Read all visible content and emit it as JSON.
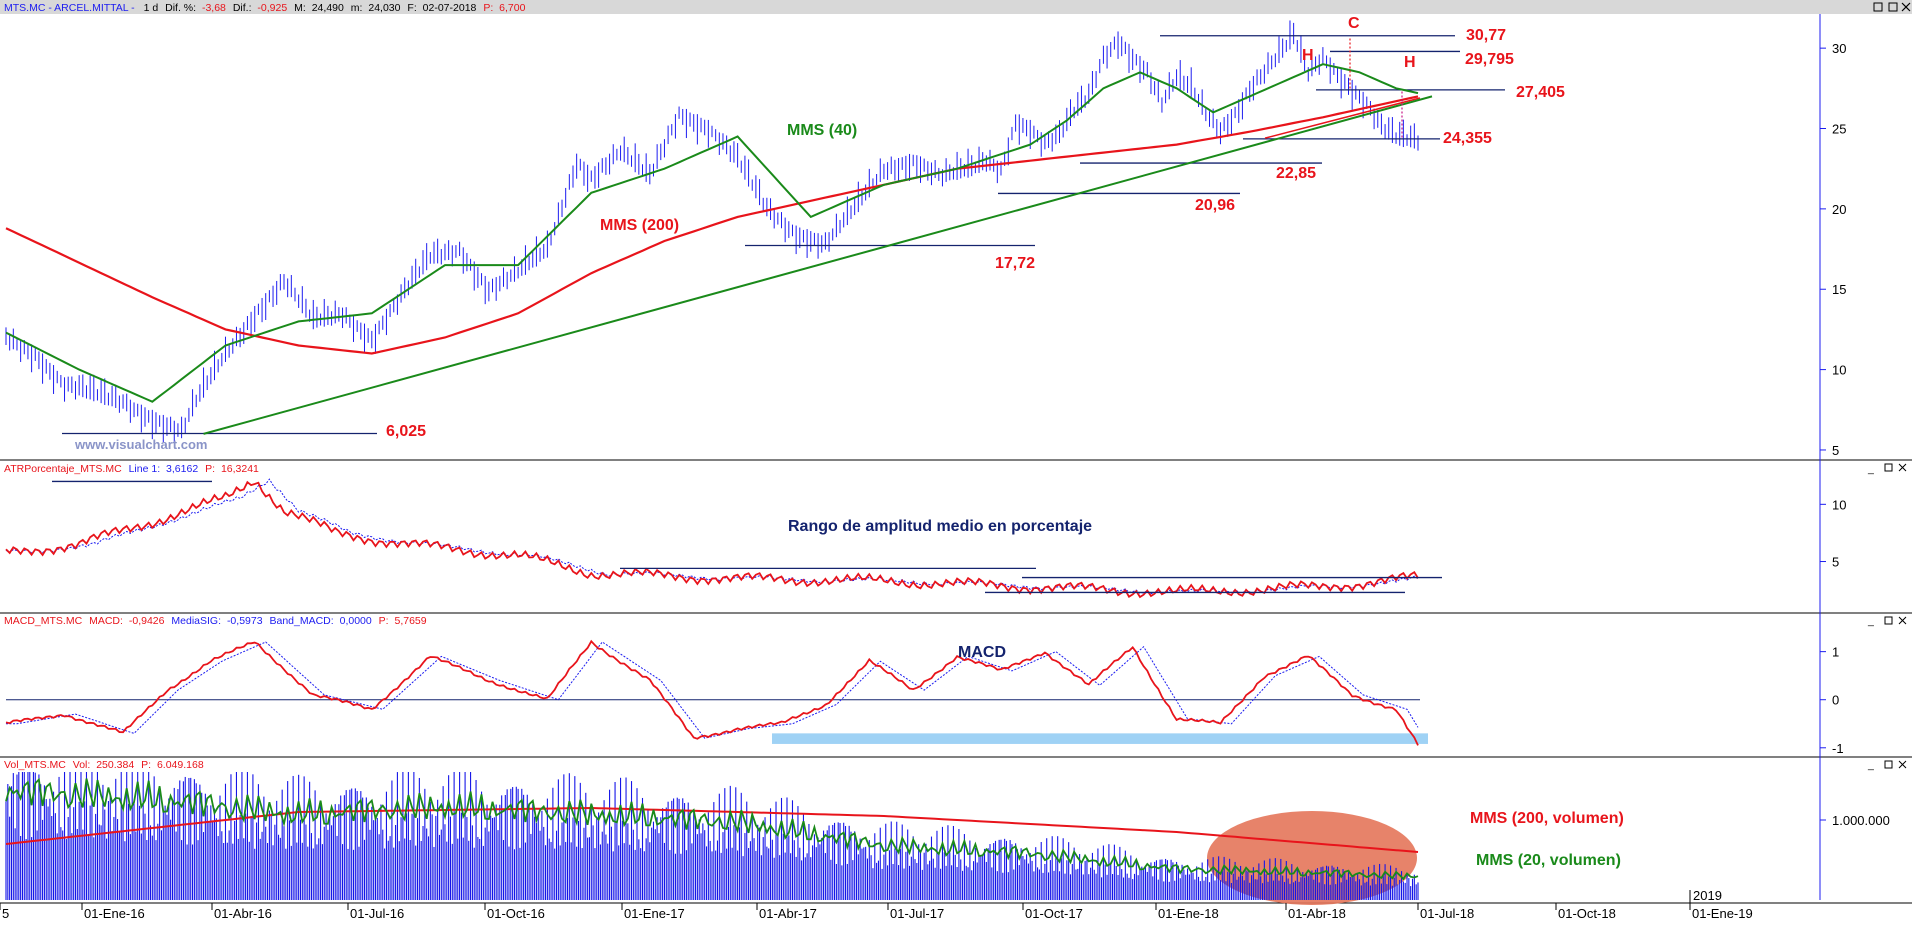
{
  "header": {
    "symbol": "MTS.MC - ARCEL.MITTAL -",
    "period": "1 d",
    "dif_pct_label": "Dif. %:",
    "dif_pct_value": "-3,68",
    "dif_label": "Dif.:",
    "dif_value": "-0,925",
    "max_label": "M:",
    "max_value": "24,490",
    "min_label": "m:",
    "min_value": "24,030",
    "date_label": "F:",
    "date_value": "02-07-2018",
    "price_label": "P:",
    "price_value": "6,700"
  },
  "panels": {
    "atr": {
      "name": "ATRPorcentaje_MTS.MC",
      "line_label": "Line 1:",
      "line_value": "3,6162",
      "p_label": "P:",
      "p_value": "16,3241"
    },
    "macd": {
      "name": "MACD_MTS.MC",
      "macd_label": "MACD:",
      "macd_value": "-0,9426",
      "sig_label": "MediaSIG:",
      "sig_value": "-0,5973",
      "band_label": "Band_MACD:",
      "band_value": "0,0000",
      "p_label": "P:",
      "p_value": "5,7659"
    },
    "vol": {
      "name": "Vol_MTS.MC",
      "vol_label": "Vol:",
      "vol_value": "250.384",
      "p_label": "P:",
      "p_value": "6.049.168"
    }
  },
  "watermark": "www.visualchart.com",
  "annotations": {
    "mms40": "MMS (40)",
    "mms200": "MMS (200)",
    "atr_title": "Rango de amplitud medio en porcentaje",
    "macd_title": "MACD",
    "vol200": "MMS (200, volumen)",
    "vol20": "MMS (20, volumen)",
    "c_mark": "C",
    "h_left": "H",
    "h_right": "H",
    "lvl_3077": "30,77",
    "lvl_29795": "29,795",
    "lvl_27405": "27,405",
    "lvl_24355": "24,355",
    "lvl_2285": "22,85",
    "lvl_2096": "20,96",
    "lvl_1772": "17,72",
    "lvl_6025": "6,025"
  },
  "colors": {
    "price": "#1c1cf0",
    "mms200": "#e8141b",
    "mms40": "#1a8a1a",
    "hline": "#14236e",
    "axis": "#1c1cf0",
    "macd_band": "#9fd2f5",
    "vol_ellipse": "#e4765a"
  },
  "chart_data": [
    {
      "type": "line",
      "panel": "price",
      "ylim": [
        4.5,
        32
      ],
      "yticks": [
        "30",
        "25",
        "20",
        "15",
        "10",
        "5"
      ],
      "ytick_values": [
        30,
        25,
        20,
        15,
        10,
        5
      ],
      "series": [
        {
          "name": "",
          "x_index": [
            0,
            4,
            8,
            12,
            16,
            20,
            24,
            26,
            30,
            34,
            38,
            42,
            46,
            50,
            54,
            58,
            62,
            66,
            70,
            74,
            78,
            80,
            84,
            88,
            92,
            96,
            100,
            104,
            108,
            112,
            116,
            120,
            124,
            128,
            132,
            134,
            136,
            138,
            140,
            142,
            144,
            146,
            148,
            150,
            152,
            154,
            156,
            158,
            160,
            162,
            164,
            166,
            168,
            170,
            172,
            174,
            176,
            178,
            180,
            182,
            184,
            186,
            188,
            190,
            192,
            194,
            196,
            198,
            200
          ],
          "values": [
            12.0,
            11.0,
            9.0,
            8.5,
            8.0,
            7.0,
            6.1,
            8.0,
            11.0,
            13.5,
            15.5,
            13.0,
            13.5,
            12.0,
            14.5,
            17.0,
            17.5,
            15.0,
            16.0,
            17.5,
            23.0,
            22.0,
            23.5,
            22.0,
            26.0,
            25.0,
            23.0,
            20.0,
            18.5,
            17.8,
            20.0,
            22.5,
            23.0,
            22.0,
            22.5,
            23.0,
            22.5,
            25.5,
            25.0,
            24.0,
            24.5,
            26.0,
            27.0,
            29.5,
            30.6,
            29.5,
            28.5,
            26.5,
            28.0,
            27.5,
            26.0,
            25.0,
            26.0,
            27.5,
            28.5,
            29.5,
            30.7,
            28.5,
            29.5,
            28.5,
            27.5,
            26.5,
            25.0,
            24.4,
            24.3,
            24.2,
            24.1,
            24.1,
            24.1
          ]
        },
        {
          "name": "MMS (40)",
          "x_index": [
            0,
            10,
            20,
            30,
            40,
            50,
            60,
            70,
            80,
            90,
            100,
            105,
            110,
            115,
            120,
            130,
            140,
            145,
            150,
            155,
            160,
            165,
            170,
            175,
            180,
            185,
            190,
            193
          ],
          "values": [
            12.3,
            10.0,
            8.0,
            11.5,
            13.0,
            13.5,
            16.5,
            16.5,
            21.0,
            22.5,
            24.5,
            22.0,
            19.5,
            20.5,
            21.5,
            22.5,
            24.0,
            25.5,
            27.5,
            28.5,
            27.5,
            26.0,
            27.0,
            28.0,
            29.0,
            28.5,
            27.5,
            27.2
          ]
        },
        {
          "name": "MMS (200)",
          "x_index": [
            0,
            20,
            30,
            40,
            50,
            60,
            70,
            80,
            90,
            100,
            110,
            120,
            130,
            140,
            150,
            160,
            170,
            180,
            190,
            193
          ],
          "values": [
            18.8,
            14.5,
            12.5,
            11.5,
            11.0,
            12.0,
            13.5,
            16.0,
            18.0,
            19.5,
            20.5,
            21.5,
            22.5,
            23.0,
            23.5,
            24.0,
            24.8,
            25.7,
            26.7,
            27.0
          ]
        }
      ],
      "levels": [
        30.77,
        29.795,
        27.405,
        24.355,
        22.85,
        20.96,
        17.72,
        6.025
      ]
    },
    {
      "type": "line",
      "panel": "atr",
      "ylim": [
        1.2,
        13
      ],
      "yticks": [
        "10",
        "5"
      ],
      "ytick_values": [
        10,
        5
      ],
      "series": [
        {
          "name": "",
          "x_index": [
            0,
            10,
            20,
            30,
            34,
            38,
            45,
            55,
            70,
            80,
            100,
            120,
            140,
            160,
            180,
            193
          ],
          "values": [
            5.8,
            6.5,
            8.5,
            10.5,
            12.2,
            9.5,
            7.5,
            6.5,
            5.5,
            4.0,
            3.5,
            3.3,
            2.8,
            2.3,
            2.8,
            3.6
          ]
        }
      ]
    },
    {
      "type": "line",
      "panel": "macd",
      "ylim": [
        -1.15,
        1.45
      ],
      "yticks": [
        "1",
        "0",
        "-1"
      ],
      "ytick_values": [
        1,
        0,
        -1
      ],
      "series": [
        {
          "name": "MACD",
          "x_index": [
            0,
            8,
            16,
            22,
            28,
            34,
            42,
            50,
            58,
            66,
            74,
            80,
            88,
            94,
            100,
            106,
            112,
            118,
            124,
            130,
            136,
            142,
            148,
            154,
            160,
            166,
            172,
            178,
            184,
            190,
            193
          ],
          "values": [
            -0.5,
            -0.3,
            -0.7,
            0.2,
            0.8,
            1.2,
            0.1,
            -0.2,
            0.9,
            0.4,
            0.0,
            1.2,
            0.4,
            -0.8,
            -0.6,
            -0.5,
            -0.1,
            0.8,
            0.2,
            0.9,
            0.6,
            1.0,
            0.3,
            1.1,
            -0.4,
            -0.5,
            0.5,
            0.9,
            0.1,
            -0.2,
            -0.95
          ]
        }
      ]
    },
    {
      "type": "bar",
      "panel": "volume",
      "ylim": [
        0,
        1600000
      ],
      "yticks": [
        "1.000.000"
      ],
      "ytick_values": [
        1000000
      ],
      "series": [
        {
          "name": "MMS (200, volumen)",
          "x_index": [
            0,
            40,
            80,
            120,
            160,
            193
          ],
          "values": [
            700000,
            1100000,
            1150000,
            1050000,
            850000,
            600000
          ]
        },
        {
          "name": "MMS (20, volumen)",
          "x_index": [
            0,
            20,
            40,
            60,
            80,
            100,
            120,
            140,
            160,
            180,
            193
          ],
          "values": [
            1400000,
            1300000,
            1100000,
            1200000,
            1100000,
            1000000,
            700000,
            600000,
            400000,
            350000,
            300000
          ]
        }
      ]
    }
  ],
  "xaxis": {
    "ticks": [
      "5",
      "01-Ene-16",
      "01-Abr-16",
      "01-Jul-16",
      "01-Oct-16",
      "01-Ene-17",
      "01-Abr-17",
      "01-Jul-17",
      "01-Oct-17",
      "01-Ene-18",
      "01-Abr-18",
      "01-Jul-18",
      "01-Oct-18",
      "01-Ene-19"
    ],
    "year_label": "2019"
  }
}
